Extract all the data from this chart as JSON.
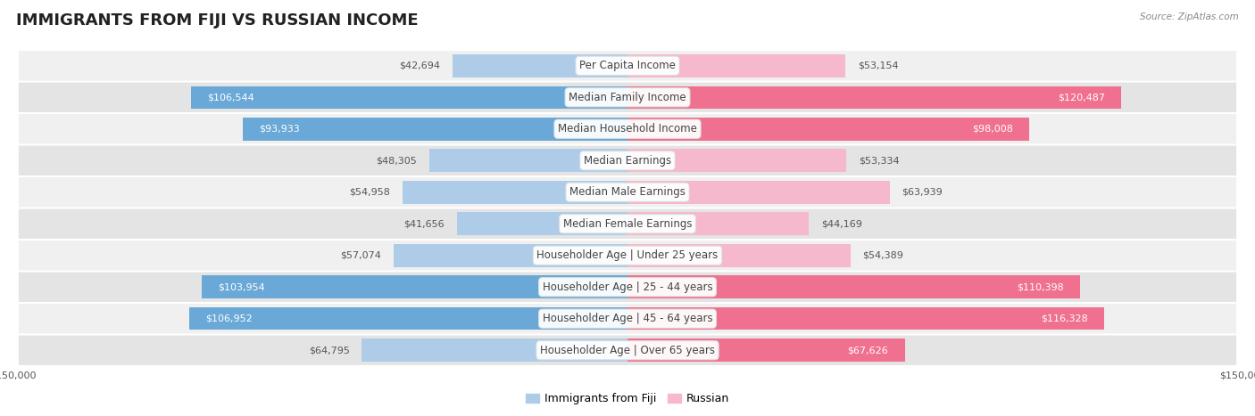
{
  "title": "IMMIGRANTS FROM FIJI VS RUSSIAN INCOME",
  "source": "Source: ZipAtlas.com",
  "categories": [
    "Per Capita Income",
    "Median Family Income",
    "Median Household Income",
    "Median Earnings",
    "Median Male Earnings",
    "Median Female Earnings",
    "Householder Age | Under 25 years",
    "Householder Age | 25 - 44 years",
    "Householder Age | 45 - 64 years",
    "Householder Age | Over 65 years"
  ],
  "fiji_values": [
    42694,
    106544,
    93933,
    48305,
    54958,
    41656,
    57074,
    103954,
    106952,
    64795
  ],
  "russian_values": [
    53154,
    120487,
    98008,
    53334,
    63939,
    44169,
    54389,
    110398,
    116328,
    67626
  ],
  "fiji_color_light": "#AECCE8",
  "fiji_color_dark": "#6AA8D8",
  "russian_color_light": "#F5B8CC",
  "russian_color_dark": "#F07090",
  "fiji_label": "Immigrants from Fiji",
  "russian_label": "Russian",
  "x_max": 150000,
  "bar_height": 0.72,
  "row_bg_even": "#F0F0F0",
  "row_bg_odd": "#E4E4E4",
  "background_color": "#FFFFFF",
  "title_fontsize": 13,
  "label_fontsize": 8.5,
  "value_fontsize": 8.0,
  "legend_fontsize": 9,
  "fiji_threshold": 65000,
  "russian_threshold": 65000
}
